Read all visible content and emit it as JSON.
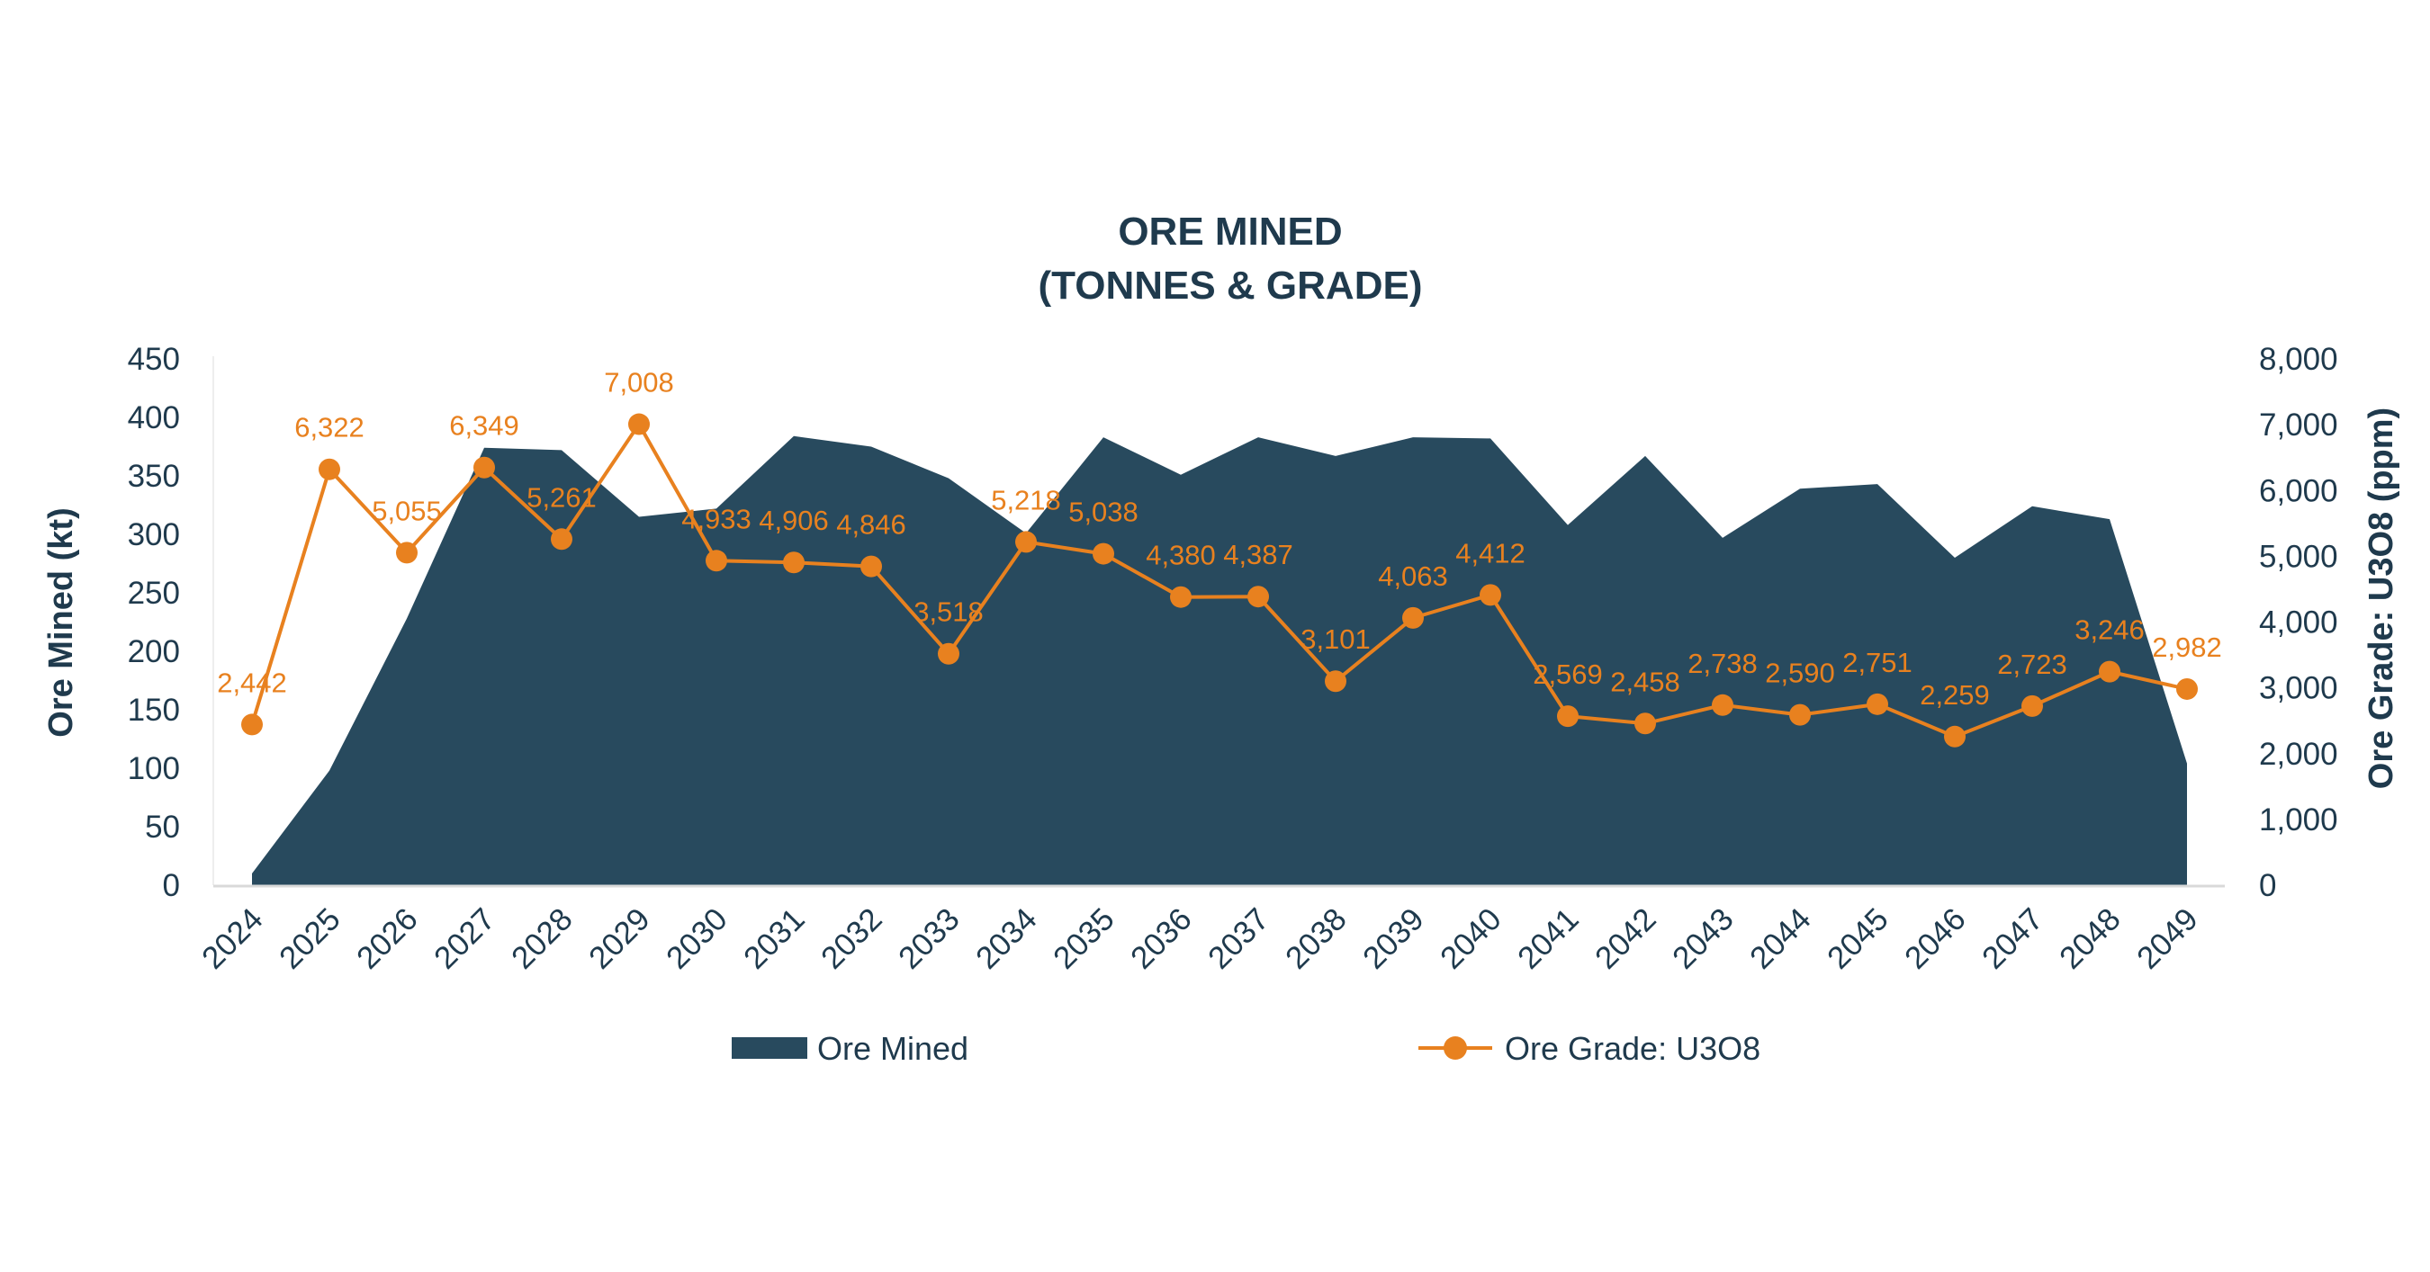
{
  "chart_data": {
    "type": "area+line",
    "title": [
      "ORE MINED",
      "(TONNES & GRADE)"
    ],
    "categories": [
      "2024",
      "2025",
      "2026",
      "2027",
      "2028",
      "2029",
      "2030",
      "2031",
      "2032",
      "2033",
      "2034",
      "2035",
      "2036",
      "2037",
      "2038",
      "2039",
      "2040",
      "2041",
      "2042",
      "2043",
      "2044",
      "2045",
      "2046",
      "2047",
      "2048",
      "2049"
    ],
    "y_left": {
      "label": "Ore Mined (kt)",
      "range": [
        0,
        450
      ],
      "ticks": [
        "0",
        "50",
        "100",
        "150",
        "200",
        "250",
        "300",
        "350",
        "400",
        "450"
      ]
    },
    "y_right": {
      "label": "Ore Grade: U3O8 (ppm)",
      "range": [
        0,
        8000
      ],
      "ticks": [
        "0",
        "1,000",
        "2,000",
        "3,000",
        "4,000",
        "5,000",
        "6,000",
        "7,000",
        "8,000"
      ]
    },
    "grid": false,
    "legend_position": "bottom",
    "series": [
      {
        "name": "Ore Mined",
        "type": "area",
        "axis": "left",
        "color": "#284a5e",
        "values": [
          10,
          98,
          228,
          374,
          372,
          315,
          322,
          384,
          375,
          348,
          301,
          383,
          351,
          383,
          367,
          383,
          382,
          308,
          367,
          297,
          339,
          343,
          280,
          324,
          313,
          104
        ]
      },
      {
        "name": "Ore Grade: U3O8",
        "type": "line",
        "axis": "right",
        "color": "#e8811f",
        "values": [
          2442,
          6322,
          5055,
          6349,
          5261,
          7008,
          4933,
          4906,
          4846,
          3518,
          5218,
          5038,
          4380,
          4387,
          3101,
          4063,
          4412,
          2569,
          2458,
          2738,
          2590,
          2751,
          2259,
          2723,
          3246,
          2982
        ],
        "labels": [
          "2,442",
          "6,322",
          "5,055",
          "6,349",
          "5,261",
          "7,008",
          "4,933",
          "4,906",
          "4,846",
          "3,518",
          "5,218",
          "5,038",
          "4,380",
          "4,387",
          "3,101",
          "4,063",
          "4,412",
          "2,569",
          "2,458",
          "2,738",
          "2,590",
          "2,751",
          "2,259",
          "2,723",
          "3,246",
          "2,982"
        ]
      }
    ]
  }
}
